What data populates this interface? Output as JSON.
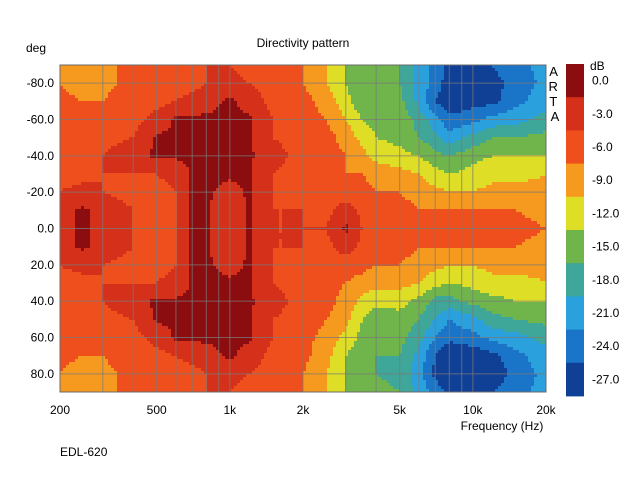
{
  "chart_data": {
    "type": "heatmap",
    "title": "Directivity pattern",
    "ylabel": "deg",
    "xlabel": "Frequency (Hz)",
    "colorbar_unit": "dB",
    "watermark": "ARTA",
    "footer": "EDL-620",
    "x_scale": "log",
    "xlim": [
      200,
      20000
    ],
    "ylim": [
      -90,
      90
    ],
    "y_direction": "top-to-bottom increasing",
    "grid": true,
    "x_ticks": [
      {
        "value": 200,
        "label": "200"
      },
      {
        "value": 500,
        "label": "500"
      },
      {
        "value": 1000,
        "label": "1k"
      },
      {
        "value": 2000,
        "label": "2k"
      },
      {
        "value": 5000,
        "label": "5k"
      },
      {
        "value": 10000,
        "label": "10k"
      },
      {
        "value": 20000,
        "label": "20k"
      }
    ],
    "y_ticks": [
      {
        "value": -80,
        "label": "-80.0"
      },
      {
        "value": -60,
        "label": "-60.0"
      },
      {
        "value": -40,
        "label": "-40.0"
      },
      {
        "value": -20,
        "label": "-20.0"
      },
      {
        "value": 0,
        "label": "0.0"
      },
      {
        "value": 20,
        "label": "20.0"
      },
      {
        "value": 40,
        "label": "40.0"
      },
      {
        "value": 60,
        "label": "60.0"
      },
      {
        "value": 80,
        "label": "80.0"
      }
    ],
    "color_levels": [
      {
        "label": "0.0",
        "min_db": 0,
        "color": "#8b0d0f"
      },
      {
        "label": "-3.0",
        "min_db": -3,
        "color": "#d5301a"
      },
      {
        "label": "-6.0",
        "min_db": -6,
        "color": "#ef4f1c"
      },
      {
        "label": "-9.0",
        "min_db": -9,
        "color": "#f6991f"
      },
      {
        "label": "-12.0",
        "min_db": -12,
        "color": "#dede26"
      },
      {
        "label": "-15.0",
        "min_db": -15,
        "color": "#6fb54b"
      },
      {
        "label": "-18.0",
        "min_db": -18,
        "color": "#3fa69a"
      },
      {
        "label": "-21.0",
        "min_db": -21,
        "color": "#2aa1dd"
      },
      {
        "label": "-24.0",
        "min_db": -24,
        "color": "#1a74c7"
      },
      {
        "label": "-27.0",
        "min_db": -27,
        "color": "#103f96"
      }
    ],
    "freqs_hz": [
      200,
      250,
      300,
      400,
      500,
      600,
      700,
      800,
      1000,
      1200,
      1500,
      2000,
      2500,
      3000,
      3500,
      4000,
      5000,
      6000,
      7000,
      8000,
      10000,
      12000,
      15000,
      20000
    ],
    "angles_deg": [
      -90,
      -80,
      -70,
      -60,
      -50,
      -40,
      -30,
      -20,
      -10,
      0,
      10,
      20,
      30,
      40,
      50,
      60,
      70,
      80,
      90
    ],
    "db_matrix": [
      [
        -6,
        -8,
        -7,
        -5,
        -4,
        -4,
        -4,
        -3,
        -3,
        -4,
        -5,
        -6,
        -9,
        -12,
        -13,
        -14,
        -15,
        -19,
        -22,
        -25,
        -25,
        -24,
        -22,
        -20
      ],
      [
        -6,
        -8,
        -7,
        -5,
        -4,
        -4,
        -4,
        -3,
        -2,
        -3,
        -5,
        -6,
        -9,
        -12,
        -14,
        -15,
        -15,
        -19,
        -22,
        -26,
        -25,
        -25,
        -23,
        -20
      ],
      [
        -5,
        -6,
        -6,
        -4,
        -4,
        -3,
        -2,
        -1,
        0.5,
        -1,
        -4,
        -5,
        -7,
        -11,
        -14,
        -15,
        -14,
        -19,
        -24,
        -27,
        -25,
        -25,
        -22,
        -19
      ],
      [
        -4,
        -5,
        -4,
        -4,
        -2,
        0.5,
        0.5,
        0.5,
        0.5,
        0.5,
        -3,
        -5,
        -6,
        -9,
        -12,
        -13,
        -13,
        -16,
        -20,
        -23,
        -22,
        -20,
        -19,
        -17
      ],
      [
        -4,
        -5,
        -4,
        -3,
        0.5,
        0.5,
        0.5,
        0.5,
        0.5,
        0.5,
        -3,
        -4,
        -5,
        -7,
        -10,
        -12,
        -13,
        -15,
        -17,
        -20,
        -17,
        -15,
        -15,
        -14
      ],
      [
        -4,
        -4,
        -3,
        -1,
        0.5,
        0.5,
        0.5,
        0.5,
        0.5,
        0.5,
        -2,
        -4,
        -5,
        -6,
        -8,
        -10,
        -11,
        -12,
        -14,
        -15,
        -13,
        -12,
        -12,
        -12
      ],
      [
        -4,
        -4,
        -3,
        -3,
        -3,
        -2,
        0.5,
        0.5,
        0.5,
        0.5,
        -3,
        -4,
        -5,
        -6,
        -6,
        -7,
        -8,
        -9,
        -11,
        -12,
        -11,
        -10,
        -10,
        -9
      ],
      [
        -3,
        -2,
        -3,
        -4,
        -4,
        -3,
        0.5,
        0.5,
        -1,
        0.5,
        -3,
        -4,
        -4,
        -5,
        -5,
        -6,
        -6,
        -7,
        -8,
        -9,
        -9,
        -8,
        -8,
        -8
      ],
      [
        -1,
        0.5,
        -1,
        -3,
        -4,
        -3,
        0.5,
        0.5,
        -3,
        0.5,
        -3,
        -3,
        -4,
        -1,
        -4,
        -5,
        -5,
        -6,
        -6,
        -6,
        -6,
        -6,
        -6,
        -7
      ],
      [
        -1,
        0.5,
        -1,
        -3,
        -4,
        -3,
        0.5,
        0.5,
        -3,
        0.5,
        -3,
        -3,
        -3,
        0.5,
        -3,
        -4,
        -4,
        -4,
        -4,
        -4,
        -4,
        -4,
        -5,
        -6
      ],
      [
        -1,
        0.5,
        -1,
        -3,
        -4,
        -3,
        0.5,
        0.5,
        -3,
        0.5,
        -3,
        -3,
        -4,
        -1,
        -4,
        -5,
        -5,
        -6,
        -6,
        -6,
        -6,
        -6,
        -6,
        -7
      ],
      [
        -3,
        -2,
        -3,
        -4,
        -4,
        -3,
        0.5,
        0.5,
        -1,
        0.5,
        -3,
        -4,
        -4,
        -5,
        -5,
        -6,
        -6,
        -7,
        -8,
        -9,
        -9,
        -8,
        -8,
        -8
      ],
      [
        -4,
        -4,
        -3,
        -3,
        -3,
        -2,
        0.5,
        0.5,
        0.5,
        0.5,
        -3,
        -4,
        -5,
        -6,
        -7,
        -8,
        -8,
        -9,
        -11,
        -12,
        -11,
        -10,
        -10,
        -9
      ],
      [
        -4,
        -4,
        -3,
        -1,
        0.5,
        0.5,
        0.5,
        0.5,
        0.5,
        0.5,
        -2,
        -4,
        -5,
        -7,
        -10,
        -11,
        -11,
        -13,
        -16,
        -16,
        -14,
        -13,
        -12,
        -12
      ],
      [
        -4,
        -5,
        -4,
        -3,
        0.5,
        0.5,
        0.5,
        0.5,
        0.5,
        0.5,
        -3,
        -4,
        -6,
        -8,
        -12,
        -14,
        -13,
        -15,
        -18,
        -21,
        -19,
        -16,
        -15,
        -14
      ],
      [
        -4,
        -5,
        -4,
        -4,
        -2,
        0.5,
        0.5,
        0.5,
        0.5,
        0.5,
        -3,
        -5,
        -7,
        -10,
        -13,
        -15,
        -14,
        -17,
        -21,
        -23,
        -22,
        -20,
        -19,
        -17
      ],
      [
        -5,
        -6,
        -6,
        -4,
        -4,
        -3,
        -2,
        -1,
        0.5,
        -1,
        -4,
        -5,
        -8,
        -12,
        -14,
        -15,
        -15,
        -19,
        -24,
        -27,
        -26,
        -25,
        -22,
        -19
      ],
      [
        -6,
        -8,
        -7,
        -5,
        -4,
        -4,
        -4,
        -3,
        -2,
        -3,
        -5,
        -6,
        -9,
        -12,
        -14,
        -15,
        -16,
        -20,
        -25,
        -27,
        -27,
        -26,
        -23,
        -20
      ],
      [
        -6,
        -8,
        -7,
        -5,
        -4,
        -4,
        -4,
        -3,
        -3,
        -4,
        -5,
        -6,
        -9,
        -12,
        -13,
        -14,
        -15,
        -19,
        -22,
        -25,
        -25,
        -24,
        -22,
        -20
      ]
    ]
  }
}
